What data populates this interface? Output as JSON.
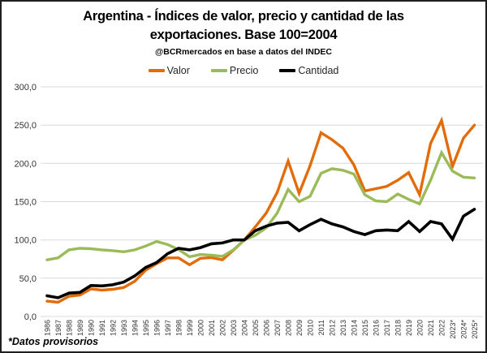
{
  "header": {
    "title_line1": "Argentina - Índices de valor, precio y cantidad de las",
    "title_line2": "exportaciones. Base 100=2004",
    "subtitle": "@BCRmercados en base a datos del INDEC"
  },
  "footnote": "*Datos provisorios",
  "chart_data": {
    "type": "line",
    "title": "Argentina - Índices de valor, precio y cantidad de las exportaciones. Base 100=2004",
    "subtitle": "@BCRmercados en base a datos del INDEC",
    "grid": true,
    "legend_position": "top",
    "y_axis": {
      "min": 0,
      "max": 300,
      "step": 50,
      "tick_format": "decimal-comma"
    },
    "categories": [
      "1986",
      "1987",
      "1988",
      "1989",
      "1990",
      "1991",
      "1992",
      "1993",
      "1994",
      "1995",
      "1996",
      "1997",
      "1998",
      "1999",
      "2000",
      "2001",
      "2002",
      "2003",
      "2004",
      "2005",
      "2006",
      "2007",
      "2008",
      "2009",
      "2010",
      "2011",
      "2012",
      "2013",
      "2014",
      "2015",
      "2016",
      "2017",
      "2018",
      "2019",
      "2020",
      "2021",
      "2022",
      "2023*",
      "2024*",
      "2025*"
    ],
    "series": [
      {
        "name": "Valor",
        "color": "#E36C0A",
        "values": [
          20,
          18.5,
          26.5,
          28,
          36,
          34.5,
          35.5,
          38,
          46,
          60.5,
          69,
          76.5,
          76.5,
          67.5,
          76,
          77,
          74,
          86.5,
          100,
          117,
          135,
          162,
          203,
          161,
          197,
          240,
          231,
          220,
          198,
          164,
          167,
          170,
          178,
          188,
          159,
          226,
          256,
          196,
          233,
          250
        ]
      },
      {
        "name": "Precio",
        "color": "#9BBB59",
        "values": [
          74,
          76.5,
          87,
          89,
          88.5,
          87,
          86,
          84.5,
          87,
          92,
          98,
          94,
          87.5,
          78,
          81,
          80,
          78.5,
          87,
          100,
          106,
          116,
          135,
          166,
          150,
          157,
          187,
          193,
          191,
          186,
          159,
          151,
          150,
          160,
          153,
          147,
          178,
          214,
          190,
          182,
          181
        ]
      },
      {
        "name": "Cantidad",
        "color": "#000000",
        "values": [
          27,
          24.5,
          30.5,
          31.5,
          40.5,
          40,
          41.5,
          45,
          53,
          64,
          70.5,
          82,
          89,
          87,
          90,
          95,
          96,
          100,
          100,
          112,
          118,
          122,
          123,
          112,
          120,
          127,
          121,
          117,
          111,
          107,
          112,
          113,
          112,
          124,
          111,
          124,
          121,
          101,
          131,
          140
        ]
      }
    ]
  }
}
